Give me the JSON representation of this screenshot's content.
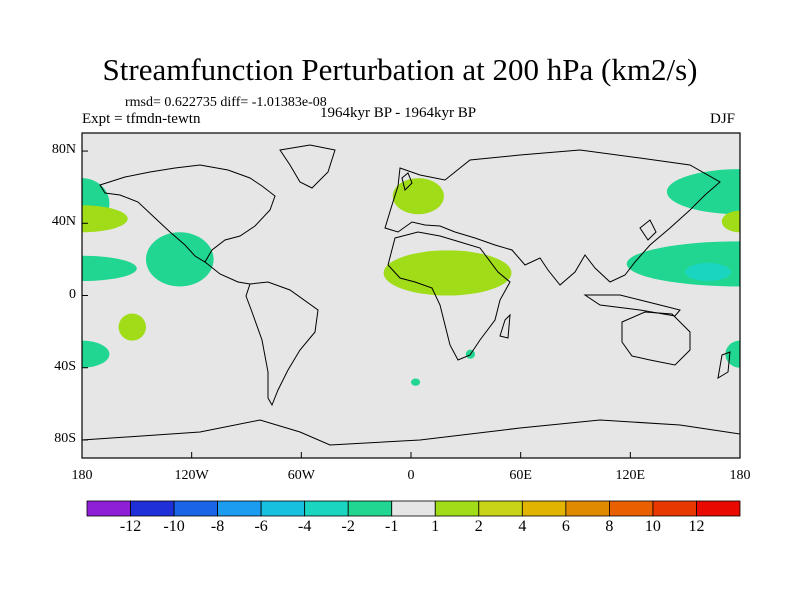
{
  "title": "Streamfunction Perturbation at 200 hPa (km2/s)",
  "stats": {
    "rmsd_label": "rmsd=",
    "rmsd": "0.622735",
    "diff_label": "diff=",
    "diff": "-1.01383e-08"
  },
  "expt": "Expt = tfmdn-tewtn",
  "period": "1964kyr BP - 1964kyr BP",
  "season": "DJF",
  "map_data": {
    "type": "filled-contour-map",
    "projection": "cylindrical-equidistant",
    "lon_range": [
      -180,
      180
    ],
    "lat_range": [
      -90,
      90
    ],
    "x_ticks": [
      "180",
      "120W",
      "60W",
      "0",
      "60E",
      "120E",
      "180"
    ],
    "y_ticks": [
      "80N",
      "40N",
      "0",
      "40S",
      "80S"
    ],
    "background_color": "#e6e6e6",
    "anomaly_regions": [
      {
        "level": "-2 to -1",
        "lon": [
          -180,
          -165
        ],
        "lat": [
          37,
          65
        ]
      },
      {
        "level": "-2 to -1",
        "lon": [
          -180,
          -150
        ],
        "lat": [
          8,
          22
        ]
      },
      {
        "level": "-2 to -1",
        "lon": [
          -145,
          -108
        ],
        "lat": [
          5,
          35
        ]
      },
      {
        "level": "-2 to -1",
        "lon": [
          -180,
          -165
        ],
        "lat": [
          -40,
          -25
        ]
      },
      {
        "level": "-2 to -1",
        "lon": [
          140,
          180
        ],
        "lat": [
          45,
          70
        ]
      },
      {
        "level": "-2 to -1",
        "lon": [
          118,
          180
        ],
        "lat": [
          5,
          30
        ]
      },
      {
        "level": "-4 to -2",
        "lon": [
          150,
          175
        ],
        "lat": [
          8,
          18
        ]
      },
      {
        "level": "-2 to -1",
        "lon": [
          172,
          180
        ],
        "lat": [
          -40,
          -25
        ]
      },
      {
        "level": "-2 to -1",
        "lon": [
          30,
          35
        ],
        "lat": [
          -35,
          -30
        ]
      },
      {
        "level": "-2 to -1",
        "lon": [
          0,
          5
        ],
        "lat": [
          -50,
          -46
        ]
      },
      {
        "level": "1 to 2",
        "lon": [
          -180,
          -155
        ],
        "lat": [
          35,
          50
        ]
      },
      {
        "level": "1 to 2",
        "lon": [
          -160,
          -145
        ],
        "lat": [
          -25,
          -10
        ]
      },
      {
        "level": "1 to 2",
        "lon": [
          -10,
          18
        ],
        "lat": [
          45,
          65
        ]
      },
      {
        "level": "1 to 2",
        "lon": [
          -15,
          55
        ],
        "lat": [
          0,
          25
        ]
      },
      {
        "level": "1 to 2",
        "lon": [
          170,
          180
        ],
        "lat": [
          35,
          47
        ]
      }
    ]
  },
  "colorbar": {
    "colors": [
      "#8f1fd6",
      "#2030d8",
      "#1a64e8",
      "#1c9cf0",
      "#18c0e0",
      "#1ad6c0",
      "#20d690",
      "#e6e6e6",
      "#a0dc18",
      "#c8d418",
      "#e0b400",
      "#e08a00",
      "#e86000",
      "#e83800",
      "#e80a00"
    ],
    "labels": [
      "-12",
      "-10",
      "-8",
      "-6",
      "-4",
      "-2",
      "-1",
      "1",
      "2",
      "4",
      "6",
      "8",
      "10",
      "12"
    ]
  }
}
